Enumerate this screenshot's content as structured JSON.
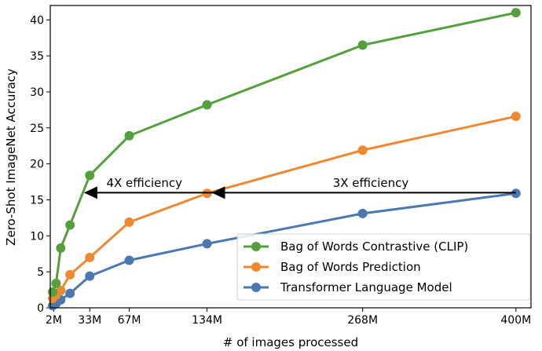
{
  "chart_data": {
    "type": "line",
    "title": "",
    "xlabel": "# of images processed",
    "ylabel": "Zero-Shot ImageNet Accuracy",
    "xlim": [
      -1,
      413
    ],
    "ylim": [
      0,
      42
    ],
    "x_ticks": [
      2,
      33,
      67,
      134,
      268,
      400
    ],
    "x_tick_labels": [
      "2M",
      "33M",
      "67M",
      "134M",
      "268M",
      "400M"
    ],
    "y_ticks": [
      0,
      5,
      10,
      15,
      20,
      25,
      30,
      35,
      40
    ],
    "y_tick_labels": [
      "0",
      "5",
      "10",
      "15",
      "20",
      "25",
      "30",
      "35",
      "40"
    ],
    "grid": false,
    "legend_position": "bottom-right",
    "x": [
      1,
      4,
      8,
      16,
      33,
      67,
      134,
      268,
      400
    ],
    "series": [
      {
        "name": "Bag of Words Contrastive (CLIP)",
        "color": "#55a03c",
        "values": [
          2.2,
          3.4,
          8.3,
          11.5,
          18.4,
          23.9,
          28.2,
          36.5,
          41.0
        ]
      },
      {
        "name": "Bag of Words Prediction",
        "color": "#ee8833",
        "values": [
          1.3,
          1.8,
          2.4,
          4.6,
          7.0,
          11.9,
          15.9,
          21.9,
          26.6
        ]
      },
      {
        "name": "Transformer Language Model",
        "color": "#4c78b0",
        "values": [
          0.3,
          0.6,
          1.1,
          2.0,
          4.4,
          6.6,
          8.9,
          13.1,
          15.9
        ]
      }
    ],
    "annotations": [
      {
        "text": "4X efficiency",
        "x": 80,
        "y": 16.8
      },
      {
        "text": "3X efficiency",
        "x": 275,
        "y": 16.8
      }
    ],
    "arrow": {
      "y": 16,
      "from_x": 400,
      "heads_x": [
        28,
        138
      ]
    }
  }
}
